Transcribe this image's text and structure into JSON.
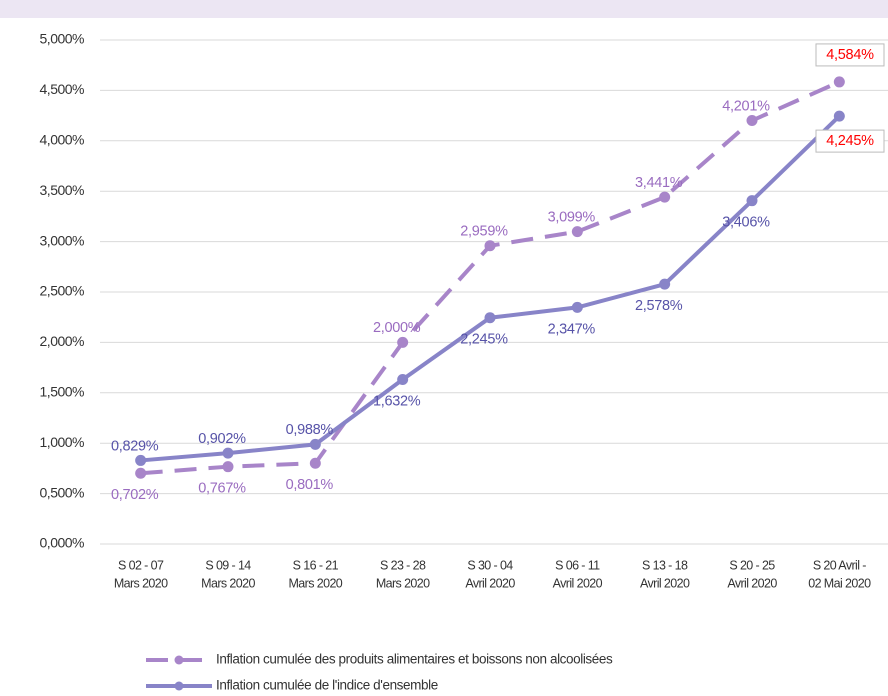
{
  "chart_data": {
    "type": "line",
    "categories": [
      [
        "S 02 - 07",
        "Mars 2020"
      ],
      [
        "S 09 - 14",
        "Mars 2020"
      ],
      [
        "S 16 - 21",
        "Mars 2020"
      ],
      [
        "S 23 - 28",
        "Mars 2020"
      ],
      [
        "S 30 - 04",
        "Avril 2020"
      ],
      [
        "S 06 - 11",
        "Avril 2020"
      ],
      [
        "S 13 - 18",
        "Avril 2020"
      ],
      [
        "S 20 - 25",
        "Avril 2020"
      ],
      [
        "S 20 Avril -",
        "02 Mai 2020"
      ]
    ],
    "series": [
      {
        "name": "Inflation cumulée des produits alimentaires et boissons non alcoolisées",
        "color": "#a885c9",
        "label_color": "#9a6cc0",
        "dashed": true,
        "values": [
          0.702,
          0.767,
          0.801,
          2.0,
          2.959,
          3.099,
          3.441,
          4.201,
          4.584
        ],
        "value_labels": [
          "0,702%",
          "0,767%",
          "0,801%",
          "2,000%",
          "2,959%",
          "3,099%",
          "3,441%",
          "4,201%",
          "4,584%"
        ]
      },
      {
        "name": "Inflation cumulée de l'indice d'ensemble",
        "color": "#8884c8",
        "label_color": "#5753a8",
        "dashed": false,
        "values": [
          0.829,
          0.902,
          0.988,
          1.632,
          2.245,
          2.347,
          2.578,
          3.406,
          4.245
        ],
        "value_labels": [
          "0,829%",
          "0,902%",
          "0,988%",
          "1,632%",
          "2,245%",
          "2,347%",
          "2,578%",
          "3,406%",
          "4,245%"
        ]
      }
    ],
    "highlight_color": "#ff0000",
    "ylim": [
      0,
      5
    ],
    "yticks": [
      {
        "value": 0,
        "label": "0,000%"
      },
      {
        "value": 0.5,
        "label": "0,500%"
      },
      {
        "value": 1,
        "label": "1,000%"
      },
      {
        "value": 1.5,
        "label": "1,500%"
      },
      {
        "value": 2,
        "label": "2,000%"
      },
      {
        "value": 2.5,
        "label": "2,500%"
      },
      {
        "value": 3,
        "label": "3,000%"
      },
      {
        "value": 3.5,
        "label": "3,500%"
      },
      {
        "value": 4,
        "label": "4,000%"
      },
      {
        "value": 4.5,
        "label": "4,500%"
      },
      {
        "value": 5,
        "label": "5,000%"
      }
    ],
    "grid": true,
    "legend": "bottom"
  }
}
